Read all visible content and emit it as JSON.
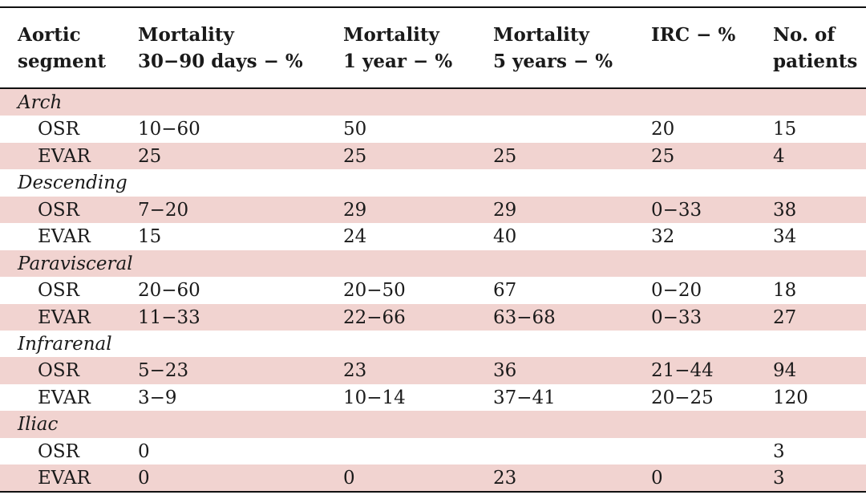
{
  "headers": [
    [
      "Aortic",
      "segment"
    ],
    [
      "Mortality",
      "30−90 days − %"
    ],
    [
      "Mortality",
      "1 year − %"
    ],
    [
      "Mortality",
      "5 years − %"
    ],
    [
      "IRC − %"
    ],
    [
      "No. of",
      "patients"
    ]
  ],
  "sections": [
    {
      "label": "Arch",
      "rows": [
        [
          "OSR",
          "10−60",
          "50",
          "",
          "20",
          "15"
        ],
        [
          "EVAR",
          "25",
          "25",
          "25",
          "25",
          "4"
        ]
      ]
    },
    {
      "label": "Descending",
      "rows": [
        [
          "OSR",
          "7−20",
          "29",
          "29",
          "0−33",
          "38"
        ],
        [
          "EVAR",
          "15",
          "24",
          "40",
          "32",
          "34"
        ]
      ]
    },
    {
      "label": "Paravisceral",
      "rows": [
        [
          "OSR",
          "20−60",
          "20−50",
          "67",
          "0−20",
          "18"
        ],
        [
          "EVAR",
          "11−33",
          "22−66",
          "63−68",
          "0−33",
          "27"
        ]
      ]
    },
    {
      "label": "Infrarenal",
      "rows": [
        [
          "OSR",
          "5−23",
          "23",
          "36",
          "21−44",
          "94"
        ],
        [
          "EVAR",
          "3−9",
          "10−14",
          "37−41",
          "20−25",
          "120"
        ]
      ]
    },
    {
      "label": "Iliac",
      "rows": [
        [
          "OSR",
          "0",
          "",
          "",
          "",
          "3"
        ],
        [
          "EVAR",
          "0",
          "0",
          "23",
          "0",
          "3"
        ]
      ]
    }
  ],
  "colors": {
    "shaded_row": "#f1d3d0",
    "rule": "#111111",
    "text": "#1a1a1a"
  }
}
